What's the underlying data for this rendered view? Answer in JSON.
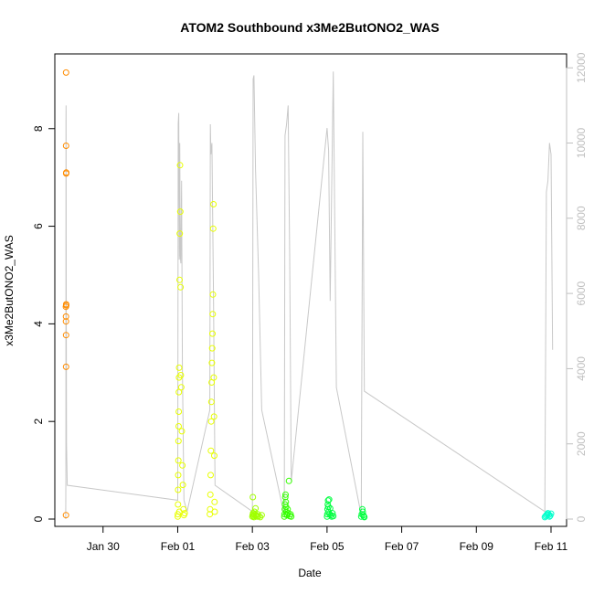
{
  "chart_data": {
    "type": "scatter",
    "title": "ATOM2 Southbound x3Me2ButONO2_WAS",
    "xlabel": "Date",
    "ylabel": "x3Me2ButONO2_WAS",
    "x_unit": "days",
    "xlim": [
      "Jan 28 17:00",
      "Feb 11 10:00"
    ],
    "ylim": [
      0,
      9.4
    ],
    "y2lim": [
      0,
      12200
    ],
    "x_ticks": [
      {
        "label": "Jan 30",
        "date": "Jan 30 00:00"
      },
      {
        "label": "Feb 01",
        "date": "Feb 01 00:00"
      },
      {
        "label": "Feb 03",
        "date": "Feb 03 00:00"
      },
      {
        "label": "Feb 05",
        "date": "Feb 05 00:00"
      },
      {
        "label": "Feb 07",
        "date": "Feb 07 00:00"
      },
      {
        "label": "Feb 09",
        "date": "Feb 09 00:00"
      },
      {
        "label": "Feb 11",
        "date": "Feb 11 00:00"
      }
    ],
    "y_ticks": [
      "0",
      "2",
      "4",
      "6",
      "8"
    ],
    "y2_ticks": [
      "0",
      "2000",
      "4000",
      "6000",
      "8000",
      "10000",
      "12000"
    ],
    "grid": false,
    "colors": {
      "flight1": "#ff8c00",
      "flight2": "#e8ff00",
      "flight3": "#a0ff00",
      "flight4": "#33ff00",
      "flight5": "#00ff40",
      "flight6": "#00ffcc",
      "altitude": "#c8c8c8"
    },
    "series": [
      {
        "color_key": "flight1",
        "x": [
          "Jan 29 00:10",
          "Jan 29 00:15",
          "Jan 29 00:12",
          "Jan 29 00:18",
          "Jan 29 00:20",
          "Jan 29 00:22",
          "Jan 29 00:08",
          "Jan 29 00:09",
          "Jan 29 00:11",
          "Jan 29 00:13",
          "Jan 29 00:14",
          "Jan 29 00:16"
        ],
        "y": [
          0.08,
          9.15,
          7.65,
          7.08,
          7.1,
          4.38,
          4.35,
          4.15,
          4.05,
          3.77,
          3.12,
          4.4
        ]
      },
      {
        "color_key": "flight2",
        "x": [
          "Feb 01 00:00",
          "Feb 01 00:05",
          "Feb 01 00:10",
          "Feb 01 00:15",
          "Feb 01 00:20",
          "Feb 01 00:25",
          "Feb 01 00:30",
          "Feb 01 00:35",
          "Feb 01 00:40",
          "Feb 01 00:45",
          "Feb 01 00:50",
          "Feb 01 00:55",
          "Feb 01 01:00",
          "Feb 01 01:10",
          "Feb 01 01:20",
          "Feb 01 01:30",
          "Feb 01 01:40",
          "Feb 01 01:50",
          "Feb 01 02:00",
          "Feb 01 02:20",
          "Feb 01 02:40",
          "Feb 01 03:00",
          "Feb 01 03:20",
          "Feb 01 03:40",
          "Feb 01 04:00",
          "Feb 01 04:30",
          "Feb 01 20:40",
          "Feb 01 20:50",
          "Feb 01 21:00",
          "Feb 01 21:10",
          "Feb 01 21:20",
          "Feb 01 21:30",
          "Feb 01 21:40",
          "Feb 01 21:50",
          "Feb 01 22:00",
          "Feb 01 22:10",
          "Feb 01 22:20",
          "Feb 01 22:30",
          "Feb 01 22:40",
          "Feb 01 22:50",
          "Feb 01 23:00",
          "Feb 01 23:10",
          "Feb 01 23:20",
          "Feb 01 23:30",
          "Feb 01 23:40",
          "Feb 01 23:50"
        ],
        "y": [
          0.05,
          0.1,
          0.3,
          0.6,
          0.9,
          1.2,
          1.6,
          1.9,
          2.2,
          2.6,
          2.9,
          3.1,
          0.15,
          4.9,
          5.85,
          7.25,
          6.3,
          4.75,
          2.95,
          2.7,
          1.8,
          1.1,
          0.7,
          0.2,
          0.08,
          0.12,
          0.1,
          0.2,
          0.5,
          0.9,
          1.4,
          2.0,
          2.4,
          2.8,
          3.2,
          3.5,
          3.8,
          4.2,
          4.6,
          5.95,
          6.45,
          2.9,
          2.1,
          1.3,
          0.35,
          0.15
        ]
      },
      {
        "color_key": "flight3",
        "x": [
          "Feb 03 00:00",
          "Feb 03 00:10",
          "Feb 03 00:20",
          "Feb 03 00:30",
          "Feb 03 00:40",
          "Feb 03 00:50",
          "Feb 03 01:00",
          "Feb 03 01:20",
          "Feb 03 01:40",
          "Feb 03 02:00",
          "Feb 03 02:30",
          "Feb 03 03:00",
          "Feb 03 03:30",
          "Feb 03 04:00",
          "Feb 03 05:00",
          "Feb 03 06:00"
        ],
        "y": [
          0.05,
          0.08,
          0.45,
          0.12,
          0.1,
          0.06,
          0.04,
          0.15,
          0.09,
          0.22,
          0.07,
          0.05,
          0.1,
          0.06,
          0.04,
          0.08
        ]
      },
      {
        "color_key": "flight4",
        "x": [
          "Feb 03 20:30",
          "Feb 03 20:40",
          "Feb 03 20:50",
          "Feb 03 21:00",
          "Feb 03 21:10",
          "Feb 03 21:20",
          "Feb 03 21:30",
          "Feb 03 21:40",
          "Feb 03 21:50",
          "Feb 03 22:00",
          "Feb 03 22:20",
          "Feb 03 22:40",
          "Feb 03 23:00",
          "Feb 03 23:30",
          "Feb 04 00:00",
          "Feb 04 00:30",
          "Feb 04 01:00"
        ],
        "y": [
          0.05,
          0.1,
          0.2,
          0.3,
          0.45,
          0.5,
          0.35,
          0.25,
          0.15,
          0.1,
          0.08,
          0.2,
          0.12,
          0.78,
          0.06,
          0.1,
          0.05
        ]
      },
      {
        "color_key": "flight5",
        "x": [
          "Feb 05 00:00",
          "Feb 05 00:10",
          "Feb 05 00:20",
          "Feb 05 00:30",
          "Feb 05 00:40",
          "Feb 05 00:50",
          "Feb 05 01:00",
          "Feb 05 01:20",
          "Feb 05 01:40",
          "Feb 05 02:00",
          "Feb 05 02:30",
          "Feb 05 03:00",
          "Feb 05 03:30",
          "Feb 05 04:00",
          "Feb 05 22:00",
          "Feb 05 22:20",
          "Feb 05 22:40",
          "Feb 05 23:00",
          "Feb 05 23:20",
          "Feb 05 23:40",
          "Feb 06 00:00"
        ],
        "y": [
          0.05,
          0.1,
          0.2,
          0.3,
          0.38,
          0.25,
          0.15,
          0.4,
          0.1,
          0.22,
          0.08,
          0.05,
          0.12,
          0.06,
          0.05,
          0.1,
          0.2,
          0.15,
          0.08,
          0.05,
          0.04
        ]
      },
      {
        "color_key": "flight6",
        "x": [
          "Feb 10 20:00",
          "Feb 10 20:30",
          "Feb 10 21:00",
          "Feb 10 21:30",
          "Feb 10 22:00",
          "Feb 10 22:30",
          "Feb 10 23:00",
          "Feb 10 23:30",
          "Feb 11 00:00"
        ],
        "y": [
          0.04,
          0.06,
          0.08,
          0.1,
          0.12,
          0.09,
          0.05,
          0.07,
          0.11
        ]
      }
    ],
    "altitude_series": {
      "color_key": "altitude",
      "axis": "right",
      "x": [
        "Jan 29 00:00",
        "Jan 29 00:05",
        "Jan 29 00:10",
        "Jan 29 00:15",
        "Jan 29 00:20",
        "Jan 29 00:30",
        "Jan 29 01:00",
        "Feb 01 00:00",
        "Feb 01 00:20",
        "Feb 01 00:40",
        "Feb 01 01:00",
        "Feb 01 01:20",
        "Feb 01 01:40",
        "Feb 01 02:00",
        "Feb 01 02:30",
        "Feb 01 03:00",
        "Feb 01 04:00",
        "Feb 01 06:00",
        "Feb 01 20:40",
        "Feb 01 21:00",
        "Feb 01 21:20",
        "Feb 01 22:00",
        "Feb 01 23:00",
        "Feb 02 00:00",
        "Feb 03 00:00",
        "Feb 03 00:30",
        "Feb 03 01:00",
        "Feb 03 02:00",
        "Feb 03 04:00",
        "Feb 03 06:00",
        "Feb 03 20:30",
        "Feb 03 21:00",
        "Feb 03 22:00",
        "Feb 03 23:00",
        "Feb 04 00:00",
        "Feb 04 01:00",
        "Feb 05 00:00",
        "Feb 05 01:00",
        "Feb 05 02:00",
        "Feb 05 04:00",
        "Feb 05 06:00",
        "Feb 05 22:00",
        "Feb 05 23:00",
        "Feb 06 00:00",
        "Feb 10 20:00",
        "Feb 10 21:00",
        "Feb 10 22:00",
        "Feb 10 23:00",
        "Feb 11 00:00",
        "Feb 11 01:00"
      ],
      "y": [
        0,
        1200,
        10600,
        11000,
        6000,
        2000,
        900,
        500,
        10500,
        10800,
        6900,
        10000,
        7000,
        6800,
        9000,
        4000,
        500,
        200,
        2900,
        10500,
        9700,
        10000,
        6000,
        900,
        200,
        11700,
        11800,
        9300,
        6500,
        2900,
        100,
        10200,
        10500,
        11000,
        7000,
        1000,
        10400,
        9800,
        5800,
        11900,
        3500,
        100,
        10300,
        3400,
        200,
        8700,
        9000,
        10000,
        9700,
        4500
      ]
    }
  }
}
